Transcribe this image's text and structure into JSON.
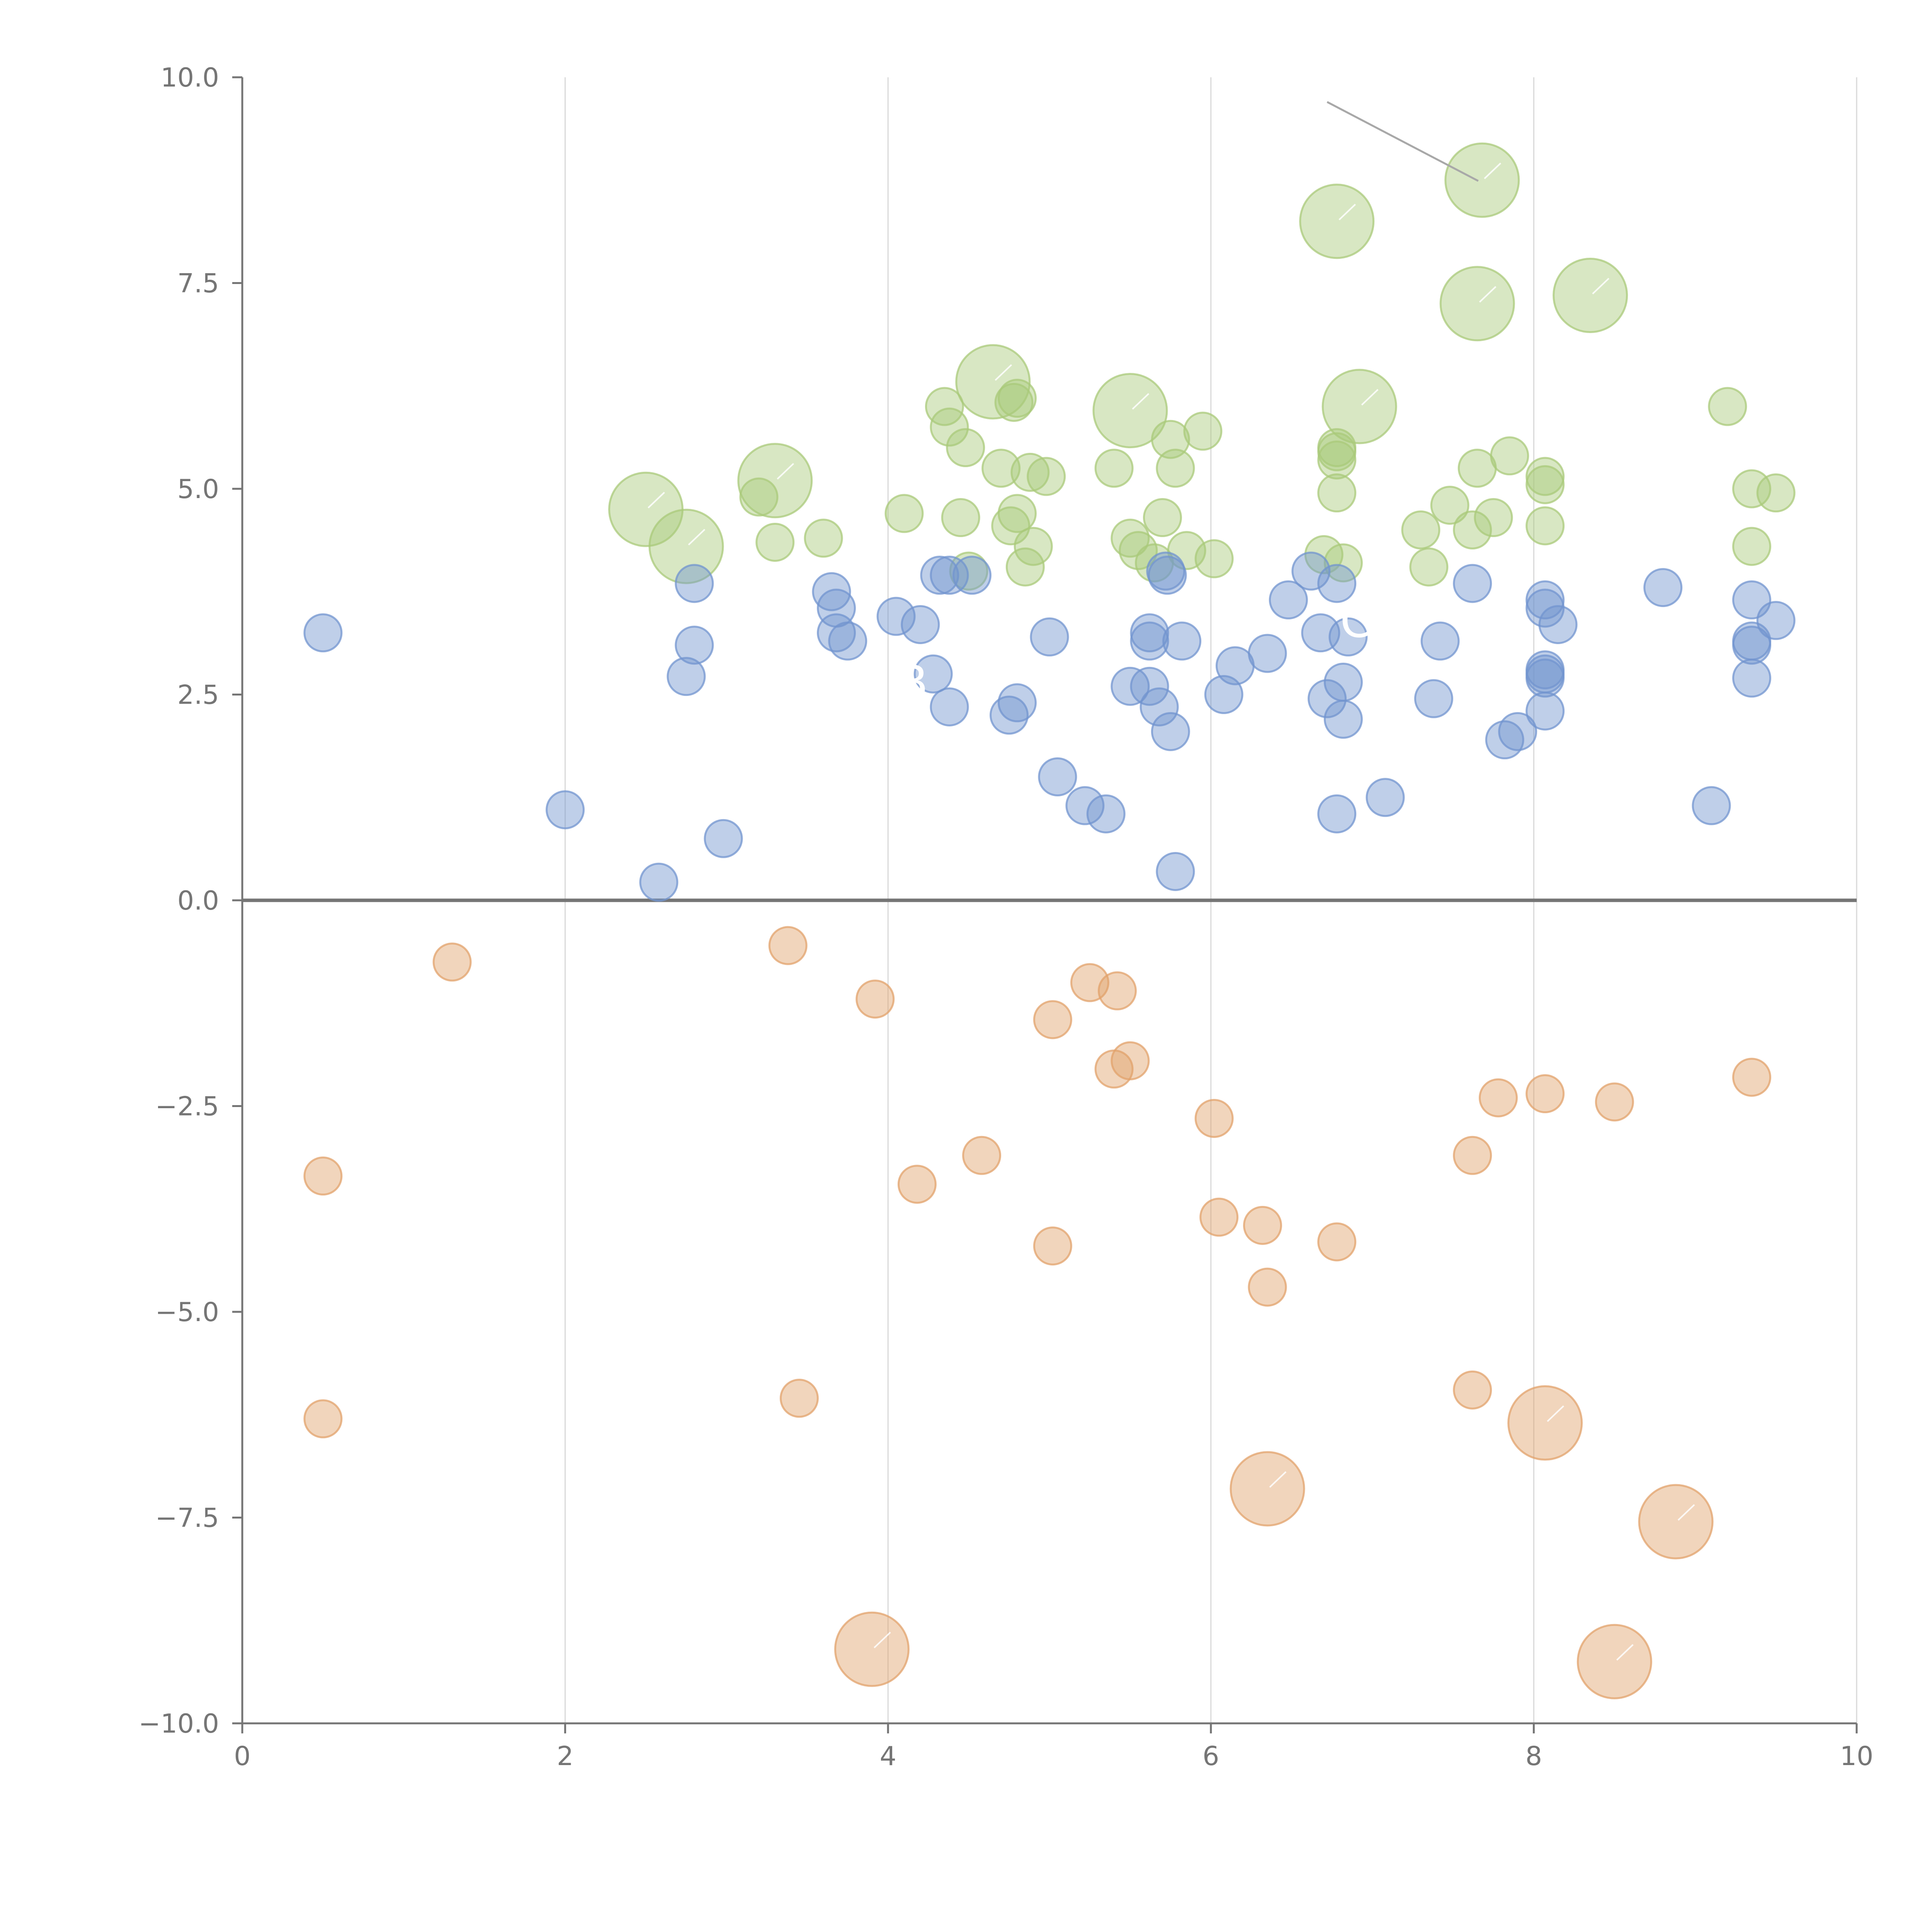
{
  "chart_data": {
    "type": "scatter",
    "title": "",
    "xlabel": "",
    "ylabel": "",
    "xlim": [
      0,
      10
    ],
    "ylim": [
      -10,
      10
    ],
    "x_ticks": [
      0,
      2,
      4,
      6,
      8,
      10
    ],
    "x_tick_labels": [
      "0",
      "2",
      "4",
      "6",
      "8",
      "10"
    ],
    "y_ticks": [
      10,
      7.5,
      5,
      2.5,
      0,
      -2.5,
      -5,
      -7.5,
      -10
    ],
    "y_tick_labels": [
      "10.0",
      "7.5",
      "5.0",
      "2.5",
      "0.0",
      "−2.5",
      "−5.0",
      "−7.5",
      "−10.0"
    ],
    "grid": "vertical",
    "reference_line_y": 0,
    "annotations": [
      {
        "text": "B",
        "x": 4.15,
        "y": 2.45
      },
      {
        "text": "C",
        "x": 6.9,
        "y": 3.2
      }
    ],
    "series": [
      {
        "name": "green",
        "color": "#a9c97a",
        "points": [
          {
            "x": 2.5,
            "y": 4.75,
            "size": 3
          },
          {
            "x": 2.75,
            "y": 4.3,
            "size": 3
          },
          {
            "x": 3.3,
            "y": 5.1,
            "size": 3
          },
          {
            "x": 4.65,
            "y": 6.3,
            "size": 3
          },
          {
            "x": 5.5,
            "y": 5.95,
            "size": 3
          },
          {
            "x": 6.78,
            "y": 8.25,
            "size": 3
          },
          {
            "x": 6.92,
            "y": 6.0,
            "size": 3
          },
          {
            "x": 7.65,
            "y": 7.25,
            "size": 3
          },
          {
            "x": 7.68,
            "y": 8.75,
            "size": 3
          },
          {
            "x": 8.35,
            "y": 7.35,
            "size": 3
          },
          {
            "x": 3.2,
            "y": 4.9,
            "size": 1
          },
          {
            "x": 3.3,
            "y": 4.35,
            "size": 1
          },
          {
            "x": 3.6,
            "y": 4.4,
            "size": 1
          },
          {
            "x": 4.1,
            "y": 4.7,
            "size": 1
          },
          {
            "x": 4.35,
            "y": 6.0,
            "size": 1
          },
          {
            "x": 4.38,
            "y": 5.75,
            "size": 1
          },
          {
            "x": 4.45,
            "y": 4.65,
            "size": 1
          },
          {
            "x": 4.48,
            "y": 5.5,
            "size": 1
          },
          {
            "x": 4.5,
            "y": 4.0,
            "size": 1
          },
          {
            "x": 4.7,
            "y": 5.25,
            "size": 1
          },
          {
            "x": 4.76,
            "y": 4.55,
            "size": 1
          },
          {
            "x": 4.78,
            "y": 6.05,
            "size": 1
          },
          {
            "x": 4.8,
            "y": 6.1,
            "size": 1
          },
          {
            "x": 4.8,
            "y": 4.7,
            "size": 1
          },
          {
            "x": 4.85,
            "y": 4.05,
            "size": 1
          },
          {
            "x": 4.88,
            "y": 5.2,
            "size": 1
          },
          {
            "x": 4.9,
            "y": 4.3,
            "size": 1
          },
          {
            "x": 4.98,
            "y": 5.15,
            "size": 1
          },
          {
            "x": 5.4,
            "y": 5.25,
            "size": 1
          },
          {
            "x": 5.5,
            "y": 4.4,
            "size": 1
          },
          {
            "x": 5.55,
            "y": 4.25,
            "size": 1
          },
          {
            "x": 5.65,
            "y": 4.1,
            "size": 1
          },
          {
            "x": 5.7,
            "y": 4.65,
            "size": 1
          },
          {
            "x": 5.75,
            "y": 5.6,
            "size": 1
          },
          {
            "x": 5.78,
            "y": 5.25,
            "size": 1
          },
          {
            "x": 5.85,
            "y": 4.25,
            "size": 1
          },
          {
            "x": 5.95,
            "y": 5.7,
            "size": 1
          },
          {
            "x": 6.02,
            "y": 4.15,
            "size": 1
          },
          {
            "x": 6.7,
            "y": 4.2,
            "size": 1
          },
          {
            "x": 6.78,
            "y": 5.5,
            "size": 1
          },
          {
            "x": 6.78,
            "y": 5.45,
            "size": 1
          },
          {
            "x": 6.78,
            "y": 5.35,
            "size": 1
          },
          {
            "x": 6.78,
            "y": 4.95,
            "size": 1
          },
          {
            "x": 6.82,
            "y": 4.1,
            "size": 1
          },
          {
            "x": 7.3,
            "y": 4.5,
            "size": 1
          },
          {
            "x": 7.35,
            "y": 4.05,
            "size": 1
          },
          {
            "x": 7.48,
            "y": 4.8,
            "size": 1
          },
          {
            "x": 7.62,
            "y": 4.5,
            "size": 1
          },
          {
            "x": 7.65,
            "y": 5.25,
            "size": 1
          },
          {
            "x": 7.75,
            "y": 4.65,
            "size": 1
          },
          {
            "x": 7.85,
            "y": 5.4,
            "size": 1
          },
          {
            "x": 8.07,
            "y": 5.15,
            "size": 1
          },
          {
            "x": 8.07,
            "y": 5.05,
            "size": 1
          },
          {
            "x": 8.07,
            "y": 4.55,
            "size": 1
          },
          {
            "x": 9.2,
            "y": 6.0,
            "size": 1
          },
          {
            "x": 9.35,
            "y": 5.0,
            "size": 1
          },
          {
            "x": 9.35,
            "y": 4.3,
            "size": 1
          },
          {
            "x": 9.5,
            "y": 4.95,
            "size": 1
          }
        ]
      },
      {
        "name": "blue",
        "color": "#7294cf",
        "points": [
          {
            "x": 0.5,
            "y": 3.25,
            "size": 1
          },
          {
            "x": 2.0,
            "y": 1.1,
            "size": 1
          },
          {
            "x": 2.58,
            "y": 0.22,
            "size": 1
          },
          {
            "x": 2.75,
            "y": 2.72,
            "size": 1
          },
          {
            "x": 2.8,
            "y": 3.85,
            "size": 1
          },
          {
            "x": 2.8,
            "y": 3.1,
            "size": 1
          },
          {
            "x": 2.98,
            "y": 0.75,
            "size": 1
          },
          {
            "x": 3.65,
            "y": 3.75,
            "size": 1
          },
          {
            "x": 3.68,
            "y": 3.55,
            "size": 1
          },
          {
            "x": 3.68,
            "y": 3.25,
            "size": 1
          },
          {
            "x": 3.75,
            "y": 3.15,
            "size": 1
          },
          {
            "x": 4.05,
            "y": 3.45,
            "size": 1
          },
          {
            "x": 4.2,
            "y": 3.35,
            "size": 1
          },
          {
            "x": 4.28,
            "y": 2.75,
            "size": 1
          },
          {
            "x": 4.32,
            "y": 3.95,
            "size": 1
          },
          {
            "x": 4.38,
            "y": 3.95,
            "size": 1
          },
          {
            "x": 4.38,
            "y": 2.35,
            "size": 1
          },
          {
            "x": 4.52,
            "y": 3.95,
            "size": 1
          },
          {
            "x": 4.75,
            "y": 2.25,
            "size": 1
          },
          {
            "x": 4.8,
            "y": 2.4,
            "size": 1
          },
          {
            "x": 5.0,
            "y": 3.2,
            "size": 1
          },
          {
            "x": 5.05,
            "y": 1.5,
            "size": 1
          },
          {
            "x": 5.22,
            "y": 1.15,
            "size": 1
          },
          {
            "x": 5.35,
            "y": 1.05,
            "size": 1
          },
          {
            "x": 5.5,
            "y": 2.6,
            "size": 1
          },
          {
            "x": 5.62,
            "y": 3.25,
            "size": 1
          },
          {
            "x": 5.62,
            "y": 3.15,
            "size": 1
          },
          {
            "x": 5.62,
            "y": 2.6,
            "size": 1
          },
          {
            "x": 5.68,
            "y": 2.35,
            "size": 1
          },
          {
            "x": 5.72,
            "y": 4.0,
            "size": 1
          },
          {
            "x": 5.73,
            "y": 3.95,
            "size": 1
          },
          {
            "x": 5.75,
            "y": 2.05,
            "size": 1
          },
          {
            "x": 5.78,
            "y": 0.35,
            "size": 1
          },
          {
            "x": 5.82,
            "y": 3.15,
            "size": 1
          },
          {
            "x": 6.08,
            "y": 2.5,
            "size": 1
          },
          {
            "x": 6.15,
            "y": 2.85,
            "size": 1
          },
          {
            "x": 6.35,
            "y": 3.0,
            "size": 1
          },
          {
            "x": 6.48,
            "y": 3.65,
            "size": 1
          },
          {
            "x": 6.62,
            "y": 4.0,
            "size": 1
          },
          {
            "x": 6.68,
            "y": 3.25,
            "size": 1
          },
          {
            "x": 6.72,
            "y": 2.45,
            "size": 1
          },
          {
            "x": 6.78,
            "y": 3.85,
            "size": 1
          },
          {
            "x": 6.78,
            "y": 1.05,
            "size": 1
          },
          {
            "x": 6.82,
            "y": 2.65,
            "size": 1
          },
          {
            "x": 6.82,
            "y": 2.2,
            "size": 1
          },
          {
            "x": 6.85,
            "y": 3.2,
            "size": 1
          },
          {
            "x": 7.08,
            "y": 1.25,
            "size": 1
          },
          {
            "x": 7.38,
            "y": 2.45,
            "size": 1
          },
          {
            "x": 7.42,
            "y": 3.15,
            "size": 1
          },
          {
            "x": 7.62,
            "y": 3.85,
            "size": 1
          },
          {
            "x": 7.82,
            "y": 1.95,
            "size": 1
          },
          {
            "x": 7.9,
            "y": 2.05,
            "size": 1
          },
          {
            "x": 8.07,
            "y": 3.65,
            "size": 1
          },
          {
            "x": 8.07,
            "y": 3.55,
            "size": 1
          },
          {
            "x": 8.07,
            "y": 2.8,
            "size": 1
          },
          {
            "x": 8.07,
            "y": 2.75,
            "size": 1
          },
          {
            "x": 8.07,
            "y": 2.7,
            "size": 1
          },
          {
            "x": 8.07,
            "y": 2.3,
            "size": 1
          },
          {
            "x": 8.15,
            "y": 3.35,
            "size": 1
          },
          {
            "x": 8.8,
            "y": 3.8,
            "size": 1
          },
          {
            "x": 9.1,
            "y": 1.15,
            "size": 1
          },
          {
            "x": 9.35,
            "y": 3.65,
            "size": 1
          },
          {
            "x": 9.35,
            "y": 3.15,
            "size": 1
          },
          {
            "x": 9.35,
            "y": 3.1,
            "size": 1
          },
          {
            "x": 9.35,
            "y": 2.7,
            "size": 1
          },
          {
            "x": 9.5,
            "y": 3.4,
            "size": 1
          }
        ]
      },
      {
        "name": "orange",
        "color": "#e1a16b",
        "points": [
          {
            "x": 1.3,
            "y": -0.75,
            "size": 1
          },
          {
            "x": 0.5,
            "y": -3.35,
            "size": 1
          },
          {
            "x": 0.5,
            "y": -6.3,
            "size": 1
          },
          {
            "x": 3.38,
            "y": -0.55,
            "size": 1
          },
          {
            "x": 3.45,
            "y": -6.05,
            "size": 1
          },
          {
            "x": 3.92,
            "y": -1.2,
            "size": 1
          },
          {
            "x": 4.18,
            "y": -3.45,
            "size": 1
          },
          {
            "x": 4.58,
            "y": -3.1,
            "size": 1
          },
          {
            "x": 5.02,
            "y": -1.45,
            "size": 1
          },
          {
            "x": 5.02,
            "y": -4.2,
            "size": 1
          },
          {
            "x": 5.25,
            "y": -1.0,
            "size": 1
          },
          {
            "x": 5.42,
            "y": -1.1,
            "size": 1
          },
          {
            "x": 5.4,
            "y": -2.05,
            "size": 1
          },
          {
            "x": 5.5,
            "y": -1.95,
            "size": 1
          },
          {
            "x": 6.02,
            "y": -2.65,
            "size": 1
          },
          {
            "x": 6.05,
            "y": -3.85,
            "size": 1
          },
          {
            "x": 6.32,
            "y": -3.95,
            "size": 1
          },
          {
            "x": 6.35,
            "y": -4.7,
            "size": 1
          },
          {
            "x": 6.78,
            "y": -4.15,
            "size": 1
          },
          {
            "x": 7.62,
            "y": -3.1,
            "size": 1
          },
          {
            "x": 7.62,
            "y": -5.95,
            "size": 1
          },
          {
            "x": 7.78,
            "y": -2.4,
            "size": 1
          },
          {
            "x": 8.07,
            "y": -2.35,
            "size": 1
          },
          {
            "x": 8.5,
            "y": -2.45,
            "size": 1
          },
          {
            "x": 9.35,
            "y": -2.15,
            "size": 1
          },
          {
            "x": 3.9,
            "y": -9.1,
            "size": 3
          },
          {
            "x": 6.35,
            "y": -7.15,
            "size": 3
          },
          {
            "x": 8.07,
            "y": -6.35,
            "size": 3
          },
          {
            "x": 8.88,
            "y": -7.55,
            "size": 3
          },
          {
            "x": 8.5,
            "y": -9.25,
            "size": 3
          }
        ]
      }
    ]
  }
}
